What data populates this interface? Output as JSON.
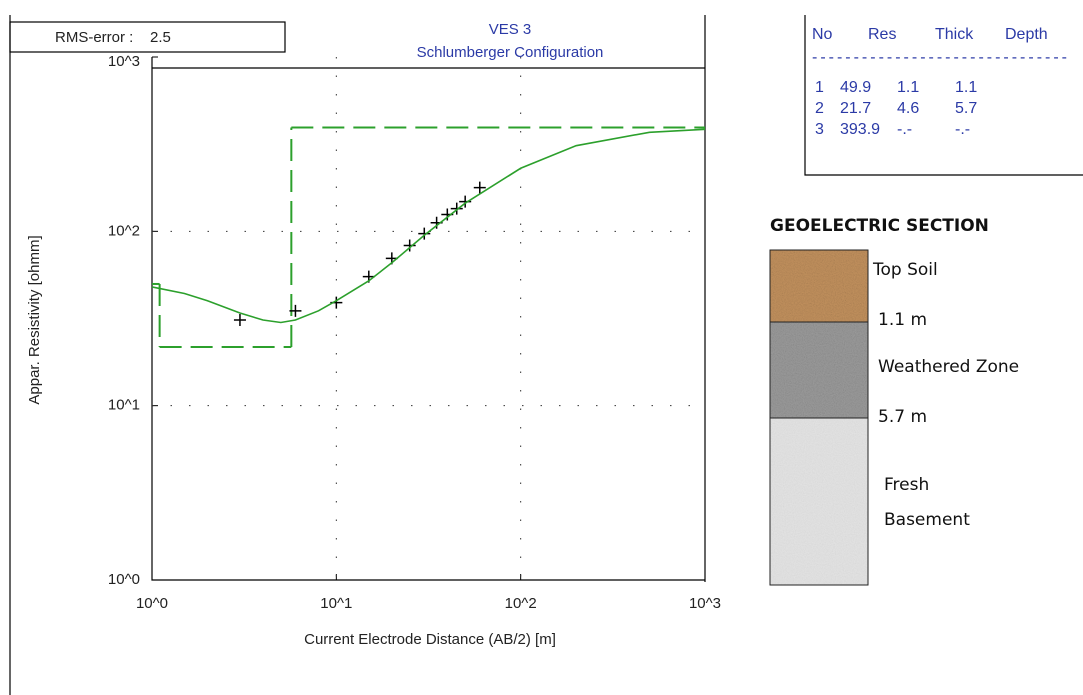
{
  "chart_data": {
    "type": "line",
    "title": "VES 3",
    "subtitle": "Schlumberger Configuration",
    "x_label": "Current Electrode Distance (AB/2) [m]",
    "y_label": "Appar. Resistivity [ohmm]",
    "rms_label": "RMS-error :",
    "rms_value": 2.5,
    "log_x": true,
    "log_y": true,
    "grid": true,
    "xlim": [
      1,
      1000
    ],
    "ylim": [
      1,
      1000
    ],
    "xticks": [
      {
        "value": 1,
        "label": "10^0"
      },
      {
        "value": 10,
        "label": "10^1"
      },
      {
        "value": 100,
        "label": "10^2"
      },
      {
        "value": 1000,
        "label": "10^3"
      }
    ],
    "yticks": [
      {
        "value": 1,
        "label": "10^0"
      },
      {
        "value": 10,
        "label": "10^1"
      },
      {
        "value": 100,
        "label": "10^2"
      },
      {
        "value": 1000,
        "label": "10^3"
      }
    ],
    "step_color": "#2ca02c",
    "series": [
      {
        "marker": "+",
        "color": "#000000",
        "x": [
          3,
          6,
          10,
          15,
          20,
          25,
          30,
          35,
          40,
          45,
          50,
          60
        ],
        "values": [
          31,
          35,
          39,
          55,
          70,
          83,
          97,
          112,
          125,
          135,
          148,
          178
        ]
      },
      {
        "color": "#2ca02c",
        "x": [
          1,
          1.5,
          2,
          3,
          4,
          5,
          6,
          8,
          10,
          15,
          20,
          30,
          50,
          100,
          200,
          500,
          1000
        ],
        "values": [
          48,
          44,
          40,
          34,
          31,
          30,
          31,
          35,
          40,
          52,
          66,
          95,
          145,
          230,
          310,
          370,
          385
        ]
      }
    ]
  },
  "layer_table": {
    "header": [
      "No",
      "Res",
      "Thick",
      "Depth"
    ],
    "rule": "-------------------------------",
    "rows": [
      [
        1,
        49.9,
        1.1,
        1.1
      ],
      [
        2,
        21.7,
        4.6,
        5.7
      ],
      [
        3,
        393.9,
        "-.-",
        "-.-"
      ]
    ]
  },
  "geoelectric_section": {
    "title": "GEOELECTRIC SECTION",
    "layers": [
      {
        "lines": [
          "Top Soil"
        ]
      },
      {
        "lines": [
          "Weathered Zone"
        ]
      },
      {
        "lines": [
          "Fresh",
          "Basement"
        ]
      }
    ],
    "depths": [
      "1.1 m",
      "5.7 m"
    ]
  }
}
